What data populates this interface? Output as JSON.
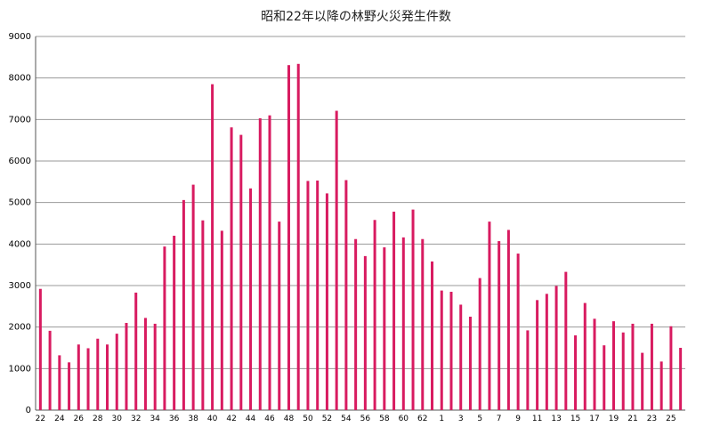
{
  "chart_data": {
    "type": "bar",
    "title": "昭和22年以降の林野火災発生件数",
    "xlabel": "",
    "ylabel": "",
    "ylim": [
      0,
      9000
    ],
    "yticks": [
      0,
      1000,
      2000,
      3000,
      4000,
      5000,
      6000,
      7000,
      8000,
      9000
    ],
    "grid": true,
    "legend": "none",
    "bar_color": "#d81b60",
    "categories": [
      "22",
      "23",
      "24",
      "25",
      "26",
      "27",
      "28",
      "29",
      "30",
      "31",
      "32",
      "33",
      "34",
      "35",
      "36",
      "37",
      "38",
      "39",
      "40",
      "41",
      "42",
      "43",
      "44",
      "45",
      "46",
      "47",
      "48",
      "49",
      "50",
      "51",
      "52",
      "53",
      "54",
      "55",
      "56",
      "57",
      "58",
      "59",
      "60",
      "61",
      "62",
      "63",
      "1",
      "2",
      "3",
      "4",
      "5",
      "6",
      "7",
      "8",
      "9",
      "10",
      "11",
      "12",
      "13",
      "14",
      "15",
      "16",
      "17",
      "18",
      "19",
      "20",
      "21",
      "22",
      "23",
      "24",
      "25",
      "26"
    ],
    "xtick_labels": [
      "22",
      "24",
      "26",
      "28",
      "30",
      "32",
      "34",
      "36",
      "38",
      "40",
      "42",
      "44",
      "46",
      "48",
      "50",
      "52",
      "54",
      "56",
      "58",
      "60",
      "62",
      "1",
      "3",
      "5",
      "7",
      "9",
      "11",
      "13",
      "15",
      "17",
      "19",
      "21",
      "23",
      "25"
    ],
    "xtick_indices": [
      0,
      2,
      4,
      6,
      8,
      10,
      12,
      14,
      16,
      18,
      20,
      22,
      24,
      26,
      28,
      30,
      32,
      34,
      36,
      38,
      40,
      42,
      44,
      46,
      48,
      50,
      52,
      54,
      56,
      58,
      60,
      62,
      64,
      66
    ],
    "values": [
      2920,
      1910,
      1320,
      1150,
      1580,
      1490,
      1720,
      1580,
      1840,
      2100,
      2830,
      2220,
      2080,
      3940,
      4200,
      5060,
      5430,
      4570,
      7850,
      4320,
      6810,
      6630,
      5340,
      7030,
      7100,
      4540,
      8310,
      8340,
      5520,
      5530,
      5220,
      7210,
      5540,
      4120,
      3710,
      4580,
      3920,
      4780,
      4160,
      4830,
      4120,
      3580,
      2880,
      2850,
      2540,
      2250,
      3180,
      4540,
      4070,
      4340,
      3770,
      1920,
      2650,
      2800,
      2990,
      3330,
      1800,
      2580,
      2200,
      1560,
      2140,
      1870,
      2080,
      1380,
      2080,
      1170,
      2020,
      1500
    ]
  }
}
